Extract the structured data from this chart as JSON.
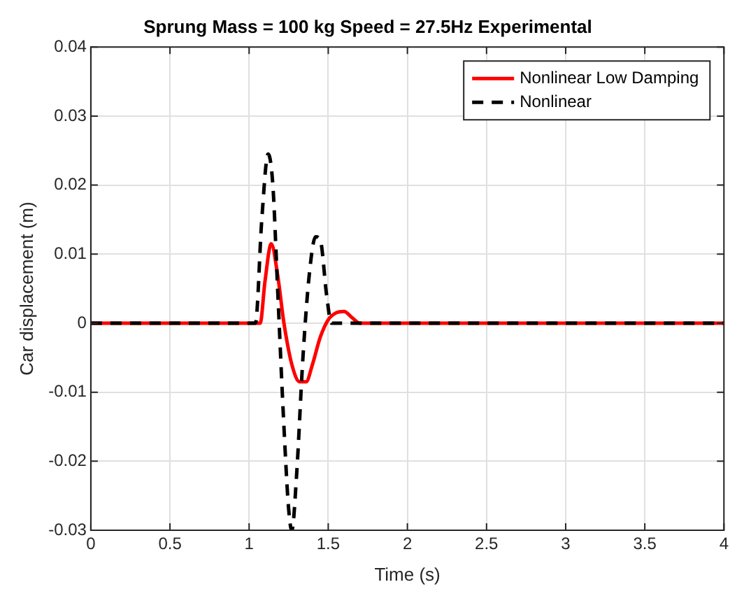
{
  "chart_data": {
    "type": "line",
    "title": "Sprung Mass = 100 kg Speed = 27.5Hz Experimental",
    "xlabel": "Time (s)",
    "ylabel": "Car displacement (m)",
    "xlim": [
      0,
      4
    ],
    "xticks": [
      0,
      0.5,
      1,
      1.5,
      2,
      2.5,
      3,
      3.5,
      4
    ],
    "ylim": [
      -0.03,
      0.04
    ],
    "yticks": [
      -0.03,
      -0.02,
      -0.01,
      0,
      0.01,
      0.02,
      0.03,
      0.04
    ],
    "grid": true,
    "legend": "top right",
    "marker": "none",
    "series": [
      {
        "name": "Nonlinear Low Damping",
        "color": "#ff0000",
        "line_style": "solid",
        "x": [
          0,
          1.07,
          1.1,
          1.14,
          1.18,
          1.22,
          1.27,
          1.32,
          1.36,
          1.4,
          1.45,
          1.5,
          1.55,
          1.6,
          1.65,
          1.7,
          4
        ],
        "values": [
          0,
          0,
          0.006,
          0.0115,
          0.007,
          0,
          -0.006,
          -0.0085,
          -0.0085,
          -0.006,
          -0.002,
          0.0005,
          0.0015,
          0.0017,
          0.0008,
          0,
          0
        ]
      },
      {
        "name": "Nonlinear",
        "color": "#000000",
        "line_style": "dashed",
        "x": [
          0,
          1.04,
          1.08,
          1.12,
          1.15,
          1.18,
          1.22,
          1.25,
          1.27,
          1.3,
          1.34,
          1.38,
          1.42,
          1.45,
          1.49,
          1.52,
          4
        ],
        "values": [
          0,
          0,
          0.015,
          0.0245,
          0.02,
          0.005,
          -0.015,
          -0.027,
          -0.03,
          -0.022,
          -0.005,
          0.007,
          0.0125,
          0.012,
          0.004,
          0,
          0
        ]
      }
    ]
  }
}
